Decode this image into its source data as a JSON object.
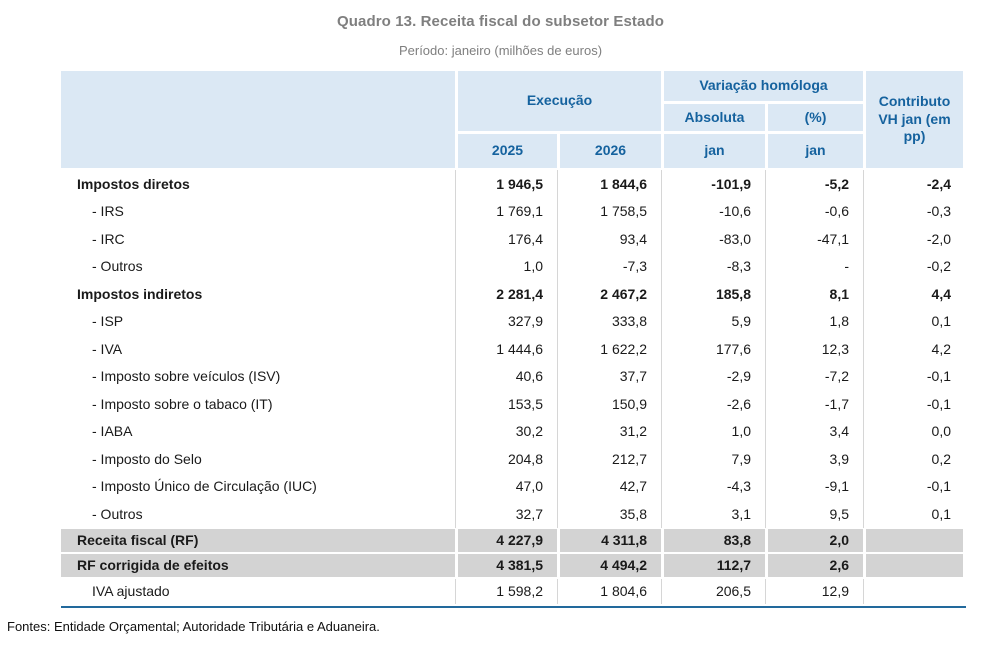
{
  "title": "Quadro 13. Receita fiscal do subsetor Estado",
  "subtitle": "Período: janeiro (milhões de euros)",
  "table": {
    "header": {
      "execucao": "Execução",
      "variacao_homologa": "Variação homóloga",
      "absoluta": "Absoluta",
      "percent": "(%)",
      "contributo": "Contributo VH jan (em pp)",
      "year_2025": "2025",
      "year_2026": "2026",
      "jan_absoluta": "jan",
      "jan_percent": "jan"
    },
    "rows": [
      {
        "type": "section",
        "label": "Impostos diretos",
        "values": [
          "1 946,5",
          "1 844,6",
          "-101,9",
          "-5,2",
          "-2,4"
        ]
      },
      {
        "type": "item",
        "label": "- IRS",
        "values": [
          "1 769,1",
          "1 758,5",
          "-10,6",
          "-0,6",
          "-0,3"
        ]
      },
      {
        "type": "item",
        "label": "- IRC",
        "values": [
          "176,4",
          "93,4",
          "-83,0",
          "-47,1",
          "-2,0"
        ]
      },
      {
        "type": "item",
        "label": "- Outros",
        "values": [
          "1,0",
          "-7,3",
          "-8,3",
          "-",
          "-0,2"
        ]
      },
      {
        "type": "section",
        "label": "Impostos indiretos",
        "values": [
          "2 281,4",
          "2 467,2",
          "185,8",
          "8,1",
          "4,4"
        ]
      },
      {
        "type": "item",
        "label": "- ISP",
        "values": [
          "327,9",
          "333,8",
          "5,9",
          "1,8",
          "0,1"
        ]
      },
      {
        "type": "item",
        "label": "- IVA",
        "values": [
          "1 444,6",
          "1 622,2",
          "177,6",
          "12,3",
          "4,2"
        ]
      },
      {
        "type": "item",
        "label": "- Imposto sobre veículos (ISV)",
        "values": [
          "40,6",
          "37,7",
          "-2,9",
          "-7,2",
          "-0,1"
        ]
      },
      {
        "type": "item",
        "label": "- Imposto sobre o tabaco (IT)",
        "values": [
          "153,5",
          "150,9",
          "-2,6",
          "-1,7",
          "-0,1"
        ]
      },
      {
        "type": "item",
        "label": "- IABA",
        "values": [
          "30,2",
          "31,2",
          "1,0",
          "3,4",
          "0,0"
        ]
      },
      {
        "type": "item",
        "label": "- Imposto do Selo",
        "values": [
          "204,8",
          "212,7",
          "7,9",
          "3,9",
          "0,2"
        ]
      },
      {
        "type": "item",
        "label": "- Imposto Único de Circulação (IUC)",
        "values": [
          "47,0",
          "42,7",
          "-4,3",
          "-9,1",
          "-0,1"
        ]
      },
      {
        "type": "item",
        "label": "- Outros",
        "values": [
          "32,7",
          "35,8",
          "3,1",
          "9,5",
          "0,1"
        ]
      },
      {
        "type": "total",
        "label": "Receita fiscal (RF)",
        "values": [
          "4 227,9",
          "4 311,8",
          "83,8",
          "2,0",
          ""
        ]
      },
      {
        "type": "total",
        "label": "RF corrigida de efeitos",
        "values": [
          "4 381,5",
          "4 494,2",
          "112,7",
          "2,6",
          ""
        ]
      },
      {
        "type": "adjusted",
        "label": "IVA ajustado",
        "values": [
          "1 598,2",
          "1 804,6",
          "206,5",
          "12,9",
          ""
        ]
      }
    ]
  },
  "footer": "Fontes: Entidade Orçamental; Autoridade Tributária e Aduaneira.",
  "colors": {
    "header_bg": "#dbe8f4",
    "header_text": "#15629e",
    "total_row_bg": "#d3d3d3",
    "bottom_rule": "#22699c",
    "title_text": "#7f7f7f"
  }
}
